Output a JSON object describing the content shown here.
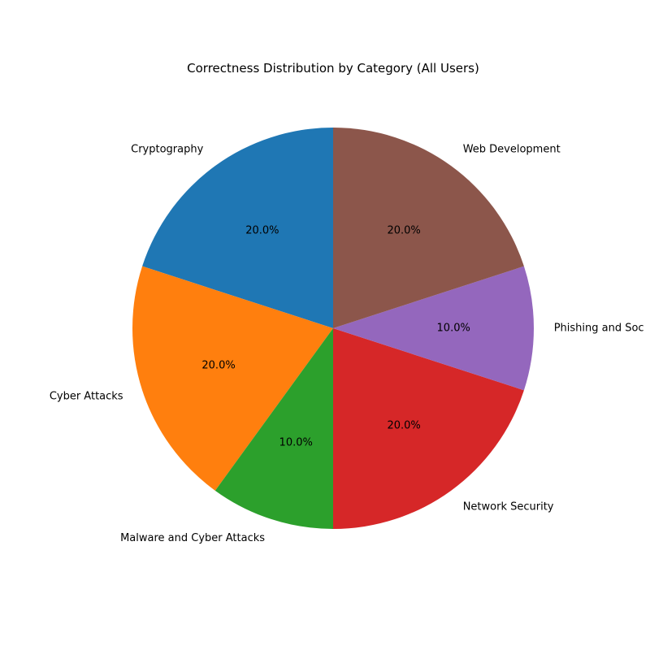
{
  "chart_data": {
    "type": "pie",
    "title": "Correctness Distribution by Category (All Users)",
    "start_angle_deg": 90,
    "direction": "counterclockwise",
    "autopct_format": "%.1f%%",
    "slices": [
      {
        "label": "Cryptography",
        "value": 20.0,
        "percent_label": "20.0%",
        "color": "#1f77b4"
      },
      {
        "label": "Cyber Attacks",
        "value": 20.0,
        "percent_label": "20.0%",
        "color": "#ff7f0e"
      },
      {
        "label": "Malware and Cyber Attacks",
        "value": 10.0,
        "percent_label": "10.0%",
        "color": "#2ca02c"
      },
      {
        "label": "Network Security",
        "value": 20.0,
        "percent_label": "20.0%",
        "color": "#d62728"
      },
      {
        "label": "Phishing and Soc",
        "value": 10.0,
        "percent_label": "10.0%",
        "color": "#9467bd"
      },
      {
        "label": "Web Development",
        "value": 20.0,
        "percent_label": "20.0%",
        "color": "#8c564b"
      }
    ]
  }
}
